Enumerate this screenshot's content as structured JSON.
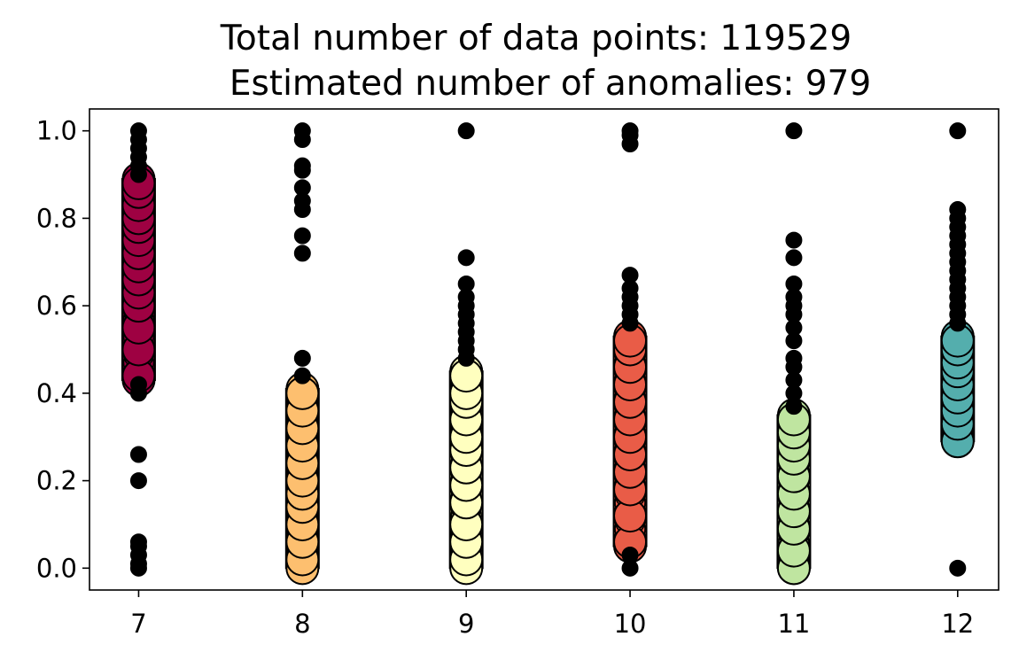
{
  "chart_data": {
    "type": "scatter",
    "title": "Total number of data points: 119529",
    "subtitle": "Estimated number of anomalies: 979",
    "xlabel": "",
    "ylabel": "",
    "xlim": [
      6.7,
      12.25
    ],
    "ylim": [
      -0.05,
      1.05
    ],
    "x_ticks": [
      7,
      8,
      9,
      10,
      11,
      12
    ],
    "y_ticks": [
      0.0,
      0.2,
      0.4,
      0.6,
      0.8,
      1.0
    ],
    "grid": false,
    "legend": "none",
    "anomaly_color": "#000000",
    "series": [
      {
        "x": 7,
        "color": "#9e0142",
        "range": [
          0.43,
          0.89
        ],
        "values": [
          0.44,
          0.5,
          0.55,
          0.6,
          0.63,
          0.66,
          0.69,
          0.72,
          0.75,
          0.78,
          0.8,
          0.83,
          0.86,
          0.88
        ],
        "anomalies": [
          0.0,
          0.01,
          0.03,
          0.05,
          0.06,
          0.2,
          0.26,
          0.4,
          0.42,
          0.9,
          0.92,
          0.94,
          0.96,
          0.98,
          1.0
        ]
      },
      {
        "x": 8,
        "color": "#fdbf6f",
        "range": [
          0.0,
          0.41
        ],
        "values": [
          0.02,
          0.06,
          0.1,
          0.14,
          0.17,
          0.2,
          0.24,
          0.28,
          0.32,
          0.36,
          0.4
        ],
        "anomalies": [
          0.44,
          0.48,
          0.72,
          0.76,
          0.82,
          0.84,
          0.87,
          0.91,
          0.92,
          0.98,
          1.0
        ]
      },
      {
        "x": 9,
        "color": "#ffffbf",
        "range": [
          0.0,
          0.45
        ],
        "values": [
          0.02,
          0.06,
          0.1,
          0.15,
          0.19,
          0.23,
          0.27,
          0.3,
          0.34,
          0.38,
          0.4,
          0.44
        ],
        "anomalies": [
          0.48,
          0.5,
          0.52,
          0.54,
          0.56,
          0.58,
          0.6,
          0.62,
          0.65,
          0.71,
          1.0
        ]
      },
      {
        "x": 10,
        "color": "#e95c47",
        "range": [
          0.05,
          0.53
        ],
        "values": [
          0.06,
          0.12,
          0.18,
          0.22,
          0.26,
          0.3,
          0.34,
          0.38,
          0.42,
          0.46,
          0.5,
          0.52
        ],
        "anomalies": [
          0.0,
          0.03,
          0.56,
          0.58,
          0.6,
          0.62,
          0.64,
          0.67,
          0.97,
          0.99,
          1.0
        ]
      },
      {
        "x": 11,
        "color": "#bfe5a0",
        "range": [
          0.0,
          0.35
        ],
        "values": [
          0.0,
          0.04,
          0.09,
          0.13,
          0.17,
          0.21,
          0.25,
          0.28,
          0.31,
          0.34
        ],
        "anomalies": [
          0.37,
          0.4,
          0.43,
          0.46,
          0.48,
          0.52,
          0.55,
          0.58,
          0.6,
          0.62,
          0.65,
          0.71,
          0.75,
          1.0
        ]
      },
      {
        "x": 12,
        "color": "#54aead",
        "range": [
          0.29,
          0.53
        ],
        "values": [
          0.29,
          0.33,
          0.36,
          0.39,
          0.42,
          0.45,
          0.47,
          0.5,
          0.52
        ],
        "anomalies": [
          0.0,
          0.56,
          0.58,
          0.6,
          0.62,
          0.64,
          0.66,
          0.68,
          0.7,
          0.72,
          0.74,
          0.76,
          0.78,
          0.8,
          0.82,
          1.0
        ]
      }
    ]
  }
}
